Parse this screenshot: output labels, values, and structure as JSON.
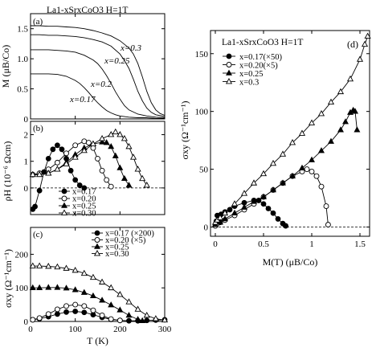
{
  "figure": {
    "header": "La1-xSrxCoO3   H=1T"
  },
  "chart_data": [
    {
      "id": "a",
      "panel_label": "(a)",
      "type": "line",
      "xlim": [
        0,
        300
      ],
      "ylim": [
        0,
        1.75
      ],
      "yticks": [
        "0",
        "0.5",
        "1.0",
        "1.5"
      ],
      "ylabel": "M (μB/Co)",
      "series": [
        {
          "x": [
            0,
            20,
            40,
            60,
            80,
            100,
            110,
            120,
            130,
            140,
            150,
            160,
            170,
            180,
            190,
            200,
            220,
            240,
            260,
            280,
            300
          ],
          "y": [
            0.75,
            0.75,
            0.75,
            0.74,
            0.71,
            0.64,
            0.59,
            0.52,
            0.44,
            0.35,
            0.27,
            0.2,
            0.14,
            0.1,
            0.07,
            0.05,
            0.03,
            0.02,
            0.02,
            0.01,
            0.01
          ]
        },
        {
          "x": [
            0,
            20,
            40,
            60,
            80,
            100,
            120,
            140,
            150,
            160,
            170,
            180,
            190,
            200,
            210,
            220,
            240,
            260,
            280,
            300
          ],
          "y": [
            1.15,
            1.15,
            1.15,
            1.14,
            1.13,
            1.11,
            1.06,
            0.98,
            0.92,
            0.83,
            0.72,
            0.59,
            0.45,
            0.33,
            0.22,
            0.15,
            0.08,
            0.05,
            0.03,
            0.02
          ]
        },
        {
          "x": [
            0,
            20,
            40,
            60,
            80,
            100,
            120,
            140,
            160,
            180,
            200,
            210,
            220,
            230,
            240,
            250,
            260,
            270,
            280,
            300
          ],
          "y": [
            1.4,
            1.4,
            1.39,
            1.39,
            1.38,
            1.37,
            1.35,
            1.32,
            1.28,
            1.21,
            1.08,
            0.97,
            0.84,
            0.66,
            0.46,
            0.3,
            0.18,
            0.11,
            0.07,
            0.04
          ]
        },
        {
          "x": [
            0,
            20,
            40,
            60,
            80,
            100,
            120,
            140,
            160,
            180,
            200,
            220,
            230,
            240,
            250,
            260,
            270,
            280,
            290,
            300
          ],
          "y": [
            1.55,
            1.55,
            1.54,
            1.54,
            1.53,
            1.52,
            1.5,
            1.47,
            1.43,
            1.38,
            1.3,
            1.18,
            1.08,
            0.92,
            0.7,
            0.46,
            0.27,
            0.15,
            0.09,
            0.06
          ]
        }
      ],
      "annotations": [
        "x=0.17",
        "x=0.2",
        "x=0.25",
        "x=0.3"
      ]
    },
    {
      "id": "b",
      "panel_label": "(b)",
      "type": "line",
      "xlim": [
        0,
        300
      ],
      "ylim": [
        -1,
        2.5
      ],
      "yticks": [
        "0",
        "1",
        "2"
      ],
      "ylabel": "ρH (10⁻⁶ Ωcm)",
      "legend": [
        "x=0.17",
        "x=0.20",
        "x=0.25",
        "x=0.30"
      ],
      "series": [
        {
          "name": "x=0.17",
          "marker": "circle-filled",
          "x": [
            5,
            10,
            20,
            30,
            40,
            50,
            60,
            70,
            80,
            90,
            100,
            110,
            120
          ],
          "y": [
            -0.8,
            -0.7,
            -0.1,
            0.6,
            1.1,
            1.45,
            1.6,
            1.45,
            1.1,
            0.65,
            0.3,
            0.1,
            0.0
          ]
        },
        {
          "name": "x=0.20",
          "marker": "circle-open",
          "x": [
            5,
            20,
            40,
            60,
            80,
            100,
            120,
            130,
            140,
            150,
            160,
            170,
            180
          ],
          "y": [
            0.5,
            0.55,
            0.7,
            0.95,
            1.3,
            1.6,
            1.75,
            1.7,
            1.5,
            1.1,
            0.65,
            0.3,
            0.05
          ]
        },
        {
          "name": "x=0.25",
          "marker": "triangle-filled",
          "x": [
            5,
            20,
            40,
            60,
            80,
            100,
            120,
            140,
            160,
            170,
            180,
            190,
            200,
            210,
            220
          ],
          "y": [
            0.5,
            0.5,
            0.55,
            0.7,
            0.95,
            1.25,
            1.5,
            1.65,
            1.72,
            1.7,
            1.55,
            1.2,
            0.75,
            0.35,
            0.1
          ]
        },
        {
          "name": "x=0.30",
          "marker": "triangle-open",
          "x": [
            5,
            20,
            40,
            60,
            80,
            100,
            120,
            140,
            160,
            180,
            190,
            200,
            210,
            220,
            230,
            240,
            250,
            260
          ],
          "y": [
            0.5,
            0.5,
            0.55,
            0.7,
            0.9,
            1.15,
            1.4,
            1.65,
            1.85,
            2.0,
            2.1,
            2.0,
            1.85,
            1.55,
            1.15,
            0.7,
            0.35,
            0.1
          ]
        }
      ]
    },
    {
      "id": "c",
      "panel_label": "(c)",
      "type": "line",
      "xlim": [
        0,
        300
      ],
      "ylim": [
        0,
        280
      ],
      "xticks": [
        "0",
        "100",
        "200",
        "300"
      ],
      "yticks": [
        "0",
        "100",
        "200"
      ],
      "xlabel": "T (K)",
      "ylabel": "σxy (Ω⁻¹cm⁻¹)",
      "legend": [
        "x=0.17 (×200)",
        "x=0.20 (×5)",
        "x=0.25",
        "x=0.30"
      ],
      "series": [
        {
          "name": "x=0.17 (×200)",
          "marker": "circle-filled",
          "x": [
            5,
            20,
            40,
            60,
            80,
            100,
            120,
            140,
            160,
            180,
            200,
            220,
            240,
            260,
            280,
            300
          ],
          "y": [
            5,
            8,
            14,
            22,
            28,
            30,
            27,
            20,
            12,
            6,
            3,
            2,
            2,
            3,
            4,
            5
          ]
        },
        {
          "name": "x=0.20 (×5)",
          "marker": "circle-open",
          "x": [
            5,
            20,
            40,
            60,
            80,
            100,
            120,
            140,
            160,
            180,
            200
          ],
          "y": [
            5,
            10,
            22,
            36,
            46,
            50,
            46,
            33,
            18,
            7,
            3
          ]
        },
        {
          "name": "x=0.25",
          "marker": "triangle-filled",
          "x": [
            5,
            20,
            40,
            60,
            80,
            100,
            120,
            140,
            160,
            180,
            200,
            220,
            240,
            250
          ],
          "y": [
            100,
            100,
            101,
            101,
            99,
            94,
            86,
            76,
            63,
            49,
            34,
            18,
            6,
            2
          ]
        },
        {
          "name": "x=0.30",
          "marker": "triangle-open",
          "x": [
            5,
            20,
            40,
            60,
            80,
            100,
            120,
            140,
            160,
            180,
            200,
            220,
            240,
            260,
            280,
            300
          ],
          "y": [
            165,
            165,
            164,
            162,
            158,
            152,
            143,
            131,
            117,
            100,
            80,
            58,
            36,
            18,
            8,
            4
          ]
        }
      ]
    },
    {
      "id": "d",
      "panel_label": "(d)",
      "type": "line",
      "header": "La1-xSrxCoO3 H=1T",
      "xlim": [
        -0.05,
        1.6
      ],
      "ylim": [
        -8,
        170
      ],
      "xticks": [
        "0",
        "0.5",
        "1",
        "1.5"
      ],
      "yticks": [
        "0",
        "50",
        "100",
        "150"
      ],
      "xlabel": "M(T) (μB/Co)",
      "ylabel": "σxy (Ω⁻¹cm⁻¹)",
      "legend": [
        "x=0.17(×50)",
        "x=0.20(×5)",
        "x=0.25",
        "x=0.3"
      ],
      "series": [
        {
          "name": "x=0.17(×50)",
          "marker": "circle-filled",
          "x": [
            0.01,
            0.02,
            0.04,
            0.06,
            0.1,
            0.15,
            0.2,
            0.3,
            0.4,
            0.45,
            0.5,
            0.55,
            0.6,
            0.65,
            0.7,
            0.73
          ],
          "y": [
            5,
            10,
            7,
            11,
            13,
            15,
            18,
            21,
            23,
            23,
            20,
            16,
            12,
            7,
            3,
            1
          ]
        },
        {
          "name": "x=0.20(×5)",
          "marker": "circle-open",
          "x": [
            0.0,
            0.02,
            0.05,
            0.1,
            0.2,
            0.3,
            0.4,
            0.5,
            0.6,
            0.7,
            0.8,
            0.9,
            0.95,
            1.0,
            1.05,
            1.1,
            1.15,
            1.17
          ],
          "y": [
            1,
            3,
            4,
            6,
            10,
            15,
            20,
            26,
            32,
            38,
            44,
            48,
            50,
            48,
            44,
            35,
            18,
            2
          ]
        },
        {
          "name": "x=0.25",
          "marker": "triangle-filled",
          "x": [
            0.0,
            0.05,
            0.1,
            0.2,
            0.3,
            0.4,
            0.5,
            0.6,
            0.7,
            0.8,
            0.9,
            1.0,
            1.1,
            1.2,
            1.3,
            1.35,
            1.4,
            1.43,
            1.45,
            1.47
          ],
          "y": [
            2,
            4,
            7,
            12,
            17,
            22,
            26,
            32,
            38,
            44,
            51,
            58,
            66,
            74,
            84,
            91,
            99,
            101,
            100,
            84
          ]
        },
        {
          "name": "x=0.3",
          "marker": "triangle-open",
          "x": [
            0.0,
            0.02,
            0.05,
            0.1,
            0.2,
            0.3,
            0.4,
            0.5,
            0.6,
            0.7,
            0.8,
            0.9,
            1.0,
            1.1,
            1.2,
            1.3,
            1.4,
            1.5,
            1.55,
            1.58
          ],
          "y": [
            4,
            6,
            8,
            12,
            20,
            29,
            38,
            46,
            55,
            63,
            73,
            81,
            90,
            98,
            108,
            117,
            128,
            145,
            158,
            165
          ]
        }
      ]
    }
  ]
}
